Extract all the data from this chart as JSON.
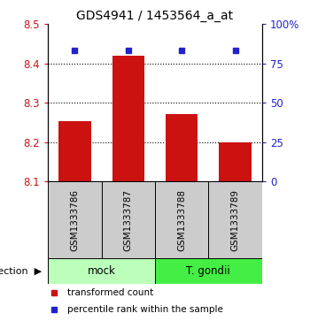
{
  "title": "GDS4941 / 1453564_a_at",
  "samples": [
    "GSM1333786",
    "GSM1333787",
    "GSM1333788",
    "GSM1333789"
  ],
  "bar_values": [
    8.253,
    8.42,
    8.272,
    8.2
  ],
  "percentile_pct": 83,
  "ymin": 8.1,
  "ymax": 8.5,
  "yticks": [
    8.1,
    8.2,
    8.3,
    8.4,
    8.5
  ],
  "right_yticks": [
    0,
    25,
    50,
    75,
    100
  ],
  "right_ytick_labels": [
    "0",
    "25",
    "50",
    "75",
    "100%"
  ],
  "bar_color": "#cc1111",
  "percentile_color": "#2222cc",
  "bar_width": 0.6,
  "groups": [
    {
      "label": "mock",
      "indices": [
        0,
        1
      ],
      "color": "#bbffbb"
    },
    {
      "label": "T. gondii",
      "indices": [
        2,
        3
      ],
      "color": "#44ee44"
    }
  ],
  "group_label": "infection",
  "sample_bg_color": "#cccccc",
  "legend_items": [
    {
      "color": "#cc1111",
      "label": "transformed count"
    },
    {
      "color": "#2222cc",
      "label": "percentile rank within the sample"
    }
  ]
}
